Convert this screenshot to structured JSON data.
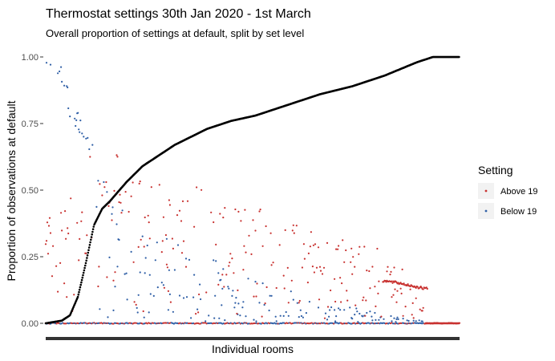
{
  "chart_data": {
    "type": "scatter",
    "title": "Thermostat settings 30th Jan 2020 - 1st March",
    "subtitle": "Overall proportion of settings at default, split by set level",
    "xlabel": "Individual rooms",
    "ylabel": "Proportion of observations at default",
    "ylim": [
      0,
      1
    ],
    "y_ticks": [
      "0.00",
      "0.25",
      "0.50",
      "0.75",
      "1.00"
    ],
    "y_tick_values": [
      0,
      0.25,
      0.5,
      0.75,
      1
    ],
    "legend": {
      "title": "Setting",
      "position": "right",
      "entries": [
        {
          "label": "Above 19",
          "color": "#c8312f"
        },
        {
          "label": "Below 19",
          "color": "#2f5fa6"
        }
      ]
    },
    "overall_line_color": "#000000",
    "overall_curve": {
      "x": [
        0,
        20,
        30,
        40,
        50,
        60,
        70,
        80,
        100,
        120,
        140,
        160,
        180,
        200,
        230,
        260,
        300,
        340,
        380,
        420,
        460,
        480,
        500,
        513
      ],
      "y": [
        0,
        0.01,
        0.03,
        0.1,
        0.23,
        0.37,
        0.43,
        0.46,
        0.53,
        0.59,
        0.63,
        0.67,
        0.7,
        0.73,
        0.76,
        0.78,
        0.82,
        0.86,
        0.89,
        0.93,
        0.98,
        1,
        1,
        1
      ]
    },
    "series": [
      {
        "name": "Above 19",
        "color": "#c8312f",
        "envelope_x": [
          0,
          20,
          40,
          60,
          80,
          100,
          120,
          140,
          160,
          180,
          200,
          240,
          280,
          320,
          360,
          400,
          430,
          450,
          460,
          470
        ],
        "envelope_y": [
          0.4,
          0.5,
          0.45,
          0.7,
          0.75,
          0.58,
          0.53,
          0.52,
          0.53,
          0.52,
          0.55,
          0.48,
          0.4,
          0.38,
          0.35,
          0.3,
          0.25,
          0.2,
          0.17,
          0.13
        ],
        "tail_x": [
          418,
          440,
          470,
          513
        ],
        "tail_y": [
          0.16,
          0.15,
          0.13,
          0.13
        ]
      },
      {
        "name": "Below 19",
        "color": "#2f5fa6",
        "envelope_x": [
          0,
          10,
          20,
          30,
          40,
          50,
          60,
          80,
          100,
          120,
          160,
          200,
          240,
          280,
          320,
          360,
          400,
          440,
          470
        ],
        "envelope_y": [
          1,
          1,
          0.98,
          0.85,
          0.8,
          0.73,
          0.68,
          0.55,
          0.45,
          0.38,
          0.3,
          0.25,
          0.2,
          0.15,
          0.1,
          0.07,
          0.05,
          0.02,
          0.01
        ]
      }
    ]
  }
}
